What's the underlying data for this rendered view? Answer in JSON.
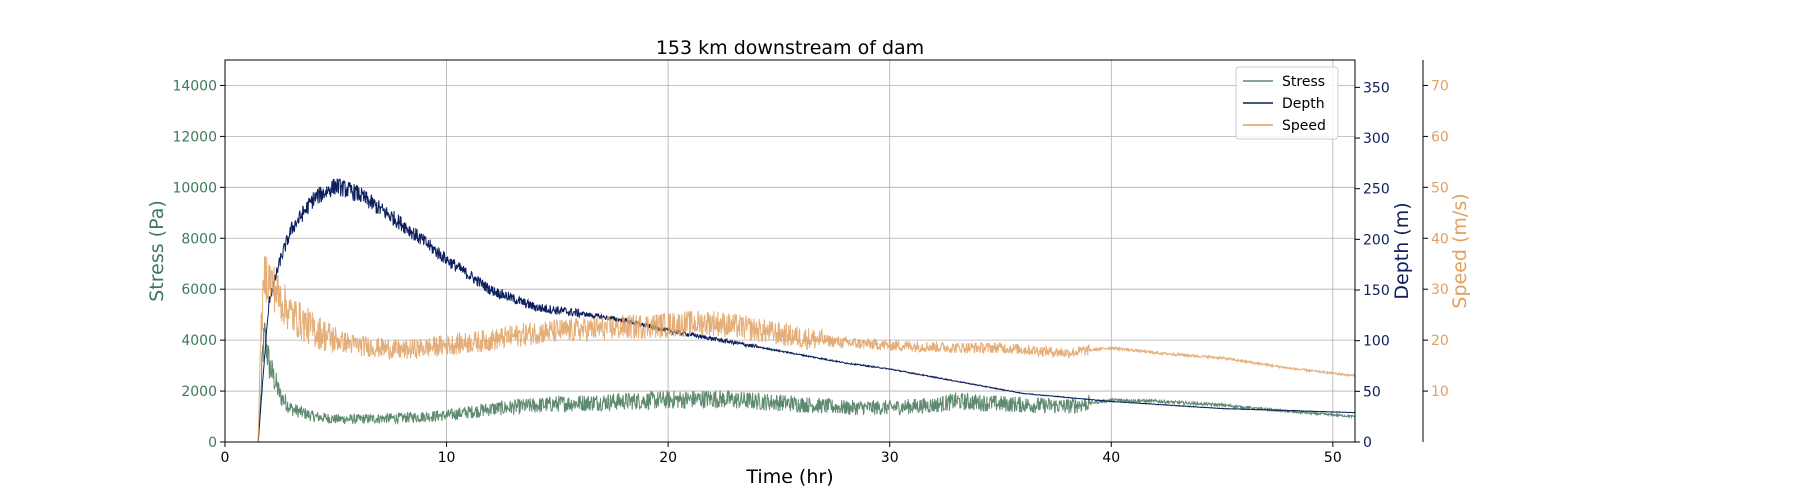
{
  "chart_data": {
    "type": "line",
    "title": "153 km downstream of dam",
    "xlabel": "Time (hr)",
    "xlim": [
      0,
      51
    ],
    "xticks": [
      0,
      10,
      20,
      30,
      40,
      50
    ],
    "grid": true,
    "legend_position": "top-right",
    "axes": {
      "stress": {
        "label": "Stress (Pa)",
        "side": "left",
        "color": "#3d7a5a",
        "ylim": [
          0,
          15000
        ],
        "ticks": [
          0,
          2000,
          4000,
          6000,
          8000,
          10000,
          12000,
          14000
        ]
      },
      "depth": {
        "label": "Depth (m)",
        "side": "right",
        "color": "#0d1f5c",
        "ylim": [
          0,
          377
        ],
        "ticks": [
          0,
          50,
          100,
          150,
          200,
          250,
          300,
          350
        ]
      },
      "speed": {
        "label": "Speed (m/s)",
        "side": "right-outer",
        "color": "#e0a060",
        "ylim": [
          0,
          75
        ],
        "ticks": [
          10,
          20,
          30,
          40,
          50,
          60,
          70
        ]
      }
    },
    "series": [
      {
        "name": "Stress",
        "axis": "stress",
        "color": "#5f8a70",
        "x": [
          0,
          1.5,
          1.6,
          1.7,
          1.8,
          2,
          2.5,
          3,
          4,
          5,
          6,
          8,
          10,
          12,
          15,
          18,
          20,
          22,
          25,
          28,
          30,
          32,
          33,
          35,
          38,
          40,
          42,
          45,
          48,
          51
        ],
        "y": [
          0,
          0,
          1500,
          3500,
          4200,
          3000,
          1800,
          1300,
          1000,
          900,
          900,
          950,
          1050,
          1300,
          1500,
          1600,
          1650,
          1700,
          1550,
          1350,
          1350,
          1450,
          1600,
          1500,
          1400,
          1650,
          1600,
          1450,
          1200,
          1000
        ]
      },
      {
        "name": "Depth",
        "axis": "depth",
        "color": "#0d1f5c",
        "x": [
          0,
          1.5,
          1.7,
          2,
          2.5,
          3,
          4,
          5,
          6,
          8,
          10,
          12,
          14,
          16,
          18,
          20,
          22,
          25,
          28,
          30,
          33,
          36,
          40,
          45,
          51
        ],
        "y": [
          0,
          0,
          60,
          140,
          180,
          210,
          240,
          253,
          245,
          215,
          180,
          150,
          133,
          127,
          120,
          110,
          102,
          90,
          78,
          72,
          60,
          48,
          40,
          33,
          29
        ]
      },
      {
        "name": "Speed",
        "axis": "speed",
        "color": "#e0a060",
        "x": [
          0,
          1.5,
          1.6,
          1.8,
          2,
          2.5,
          3,
          4,
          5,
          6,
          8,
          10,
          12,
          14,
          16,
          18,
          20,
          22,
          24,
          26,
          28,
          30,
          33,
          35,
          38,
          40,
          42,
          45,
          48,
          51
        ],
        "y": [
          0,
          0,
          20,
          33,
          32,
          28,
          25,
          22,
          20,
          19,
          18,
          19,
          20,
          21.5,
          22,
          22.5,
          23,
          23.5,
          22,
          20.5,
          19.5,
          19,
          18.5,
          18.5,
          17.5,
          18.5,
          17.5,
          16.5,
          14.5,
          13
        ]
      }
    ]
  }
}
